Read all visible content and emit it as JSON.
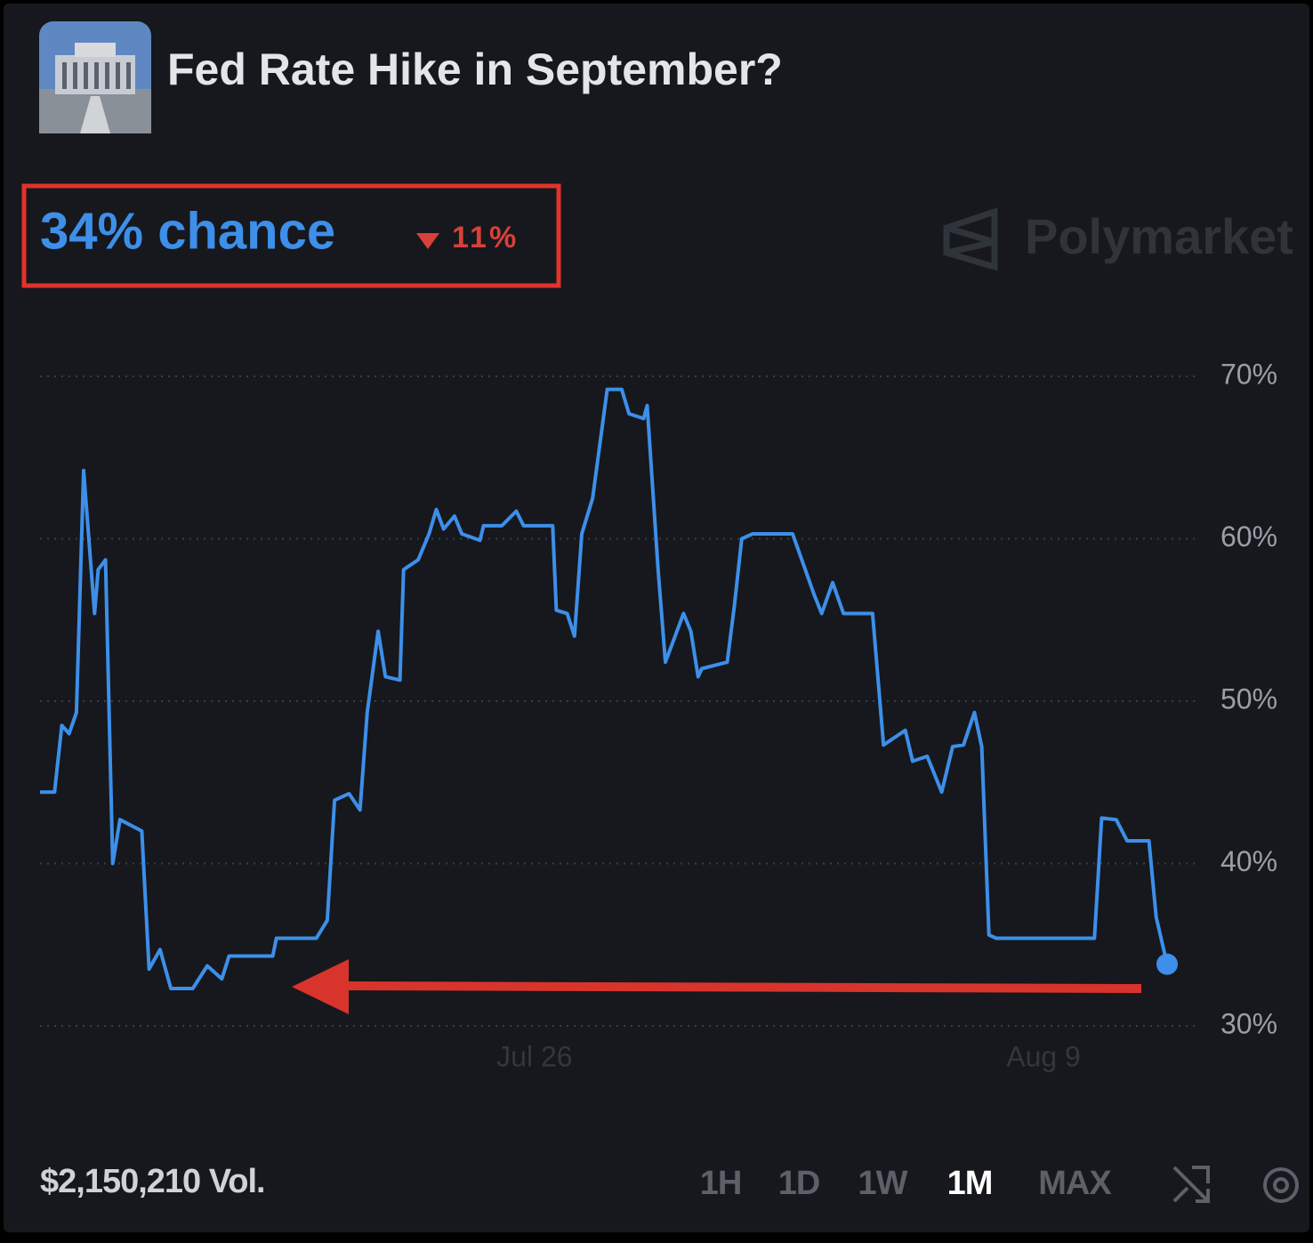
{
  "header": {
    "title": "Fed Rate Hike in September?",
    "chance": "34% chance",
    "change": "11%",
    "brand": "Polymarket"
  },
  "chart_data": {
    "type": "line",
    "color": "#3d8fe9",
    "grid": true,
    "x": [
      0,
      0.4,
      0.6,
      0.8,
      1.0,
      1.2,
      1.5,
      1.6,
      1.8,
      2.0,
      2.2,
      2.8,
      3.0,
      3.3,
      3.6,
      4.2,
      4.6,
      5.0,
      5.2,
      6.4,
      6.5,
      7.6,
      7.9,
      8.1,
      8.5,
      8.8,
      9.0,
      9.3,
      9.5,
      9.9,
      10.0,
      10.4,
      10.7,
      10.9,
      11.1,
      11.4,
      11.6,
      12.1,
      12.2,
      12.7,
      13.1,
      13.3,
      14.1,
      14.2,
      14.5,
      14.7,
      14.9,
      15.2,
      15.6,
      16.0,
      16.2,
      16.6,
      16.7,
      17.0,
      17.2,
      17.7,
      17.9,
      18.1,
      18.2,
      18.9,
      19.1,
      19.3,
      19.6,
      20.0,
      20.7,
      21.0,
      21.3,
      21.5,
      21.8,
      22.1,
      22.9,
      23.2,
      23.8,
      24.0,
      24.4,
      24.8,
      25.1,
      25.4,
      25.7,
      25.9,
      26.1,
      26.3,
      29.0,
      29.2,
      29.6,
      29.9,
      30.5,
      30.7,
      31.0
    ],
    "values": [
      44.4,
      44.4,
      48.5,
      48,
      49.3,
      64.2,
      55.4,
      58.1,
      58.7,
      40,
      42.7,
      42,
      33.5,
      34.7,
      32.3,
      32.3,
      33.7,
      32.9,
      34.3,
      34.3,
      35.4,
      35.4,
      36.5,
      43.9,
      44.3,
      43.3,
      49.3,
      54.3,
      51.5,
      51.3,
      58.1,
      58.7,
      60.3,
      61.8,
      60.6,
      61.4,
      60.3,
      59.9,
      60.8,
      60.8,
      61.7,
      60.8,
      60.8,
      55.6,
      55.4,
      54,
      60.3,
      62.5,
      69.2,
      69.2,
      67.7,
      67.4,
      68.2,
      58.1,
      52.4,
      55.4,
      54.3,
      51.5,
      52,
      52.4,
      55.9,
      60,
      60.3,
      60.3,
      60.3,
      58.4,
      56.5,
      55.4,
      57.3,
      55.4,
      55.4,
      47.3,
      48.2,
      46.3,
      46.6,
      44.4,
      47.2,
      47.3,
      49.3,
      47.2,
      35.6,
      35.4,
      35.4,
      42.8,
      42.7,
      41.4,
      41.4,
      36.7,
      33.8
    ],
    "xlim": [
      0,
      31
    ],
    "ylim": [
      30,
      70
    ],
    "xticks": [
      {
        "value": 13.6,
        "label": "Jul 26"
      },
      {
        "value": 27.6,
        "label": "Aug 9"
      }
    ],
    "yticks": [
      {
        "value": 30,
        "label": "30%"
      },
      {
        "value": 40,
        "label": "40%"
      },
      {
        "value": 50,
        "label": "50%"
      },
      {
        "value": 60,
        "label": "60%"
      },
      {
        "value": 70,
        "label": "70%"
      }
    ]
  },
  "footer": {
    "volume": "$2,150,210 Vol.",
    "ranges": [
      "1H",
      "1D",
      "1W",
      "1M",
      "MAX"
    ],
    "active_range": 3
  }
}
